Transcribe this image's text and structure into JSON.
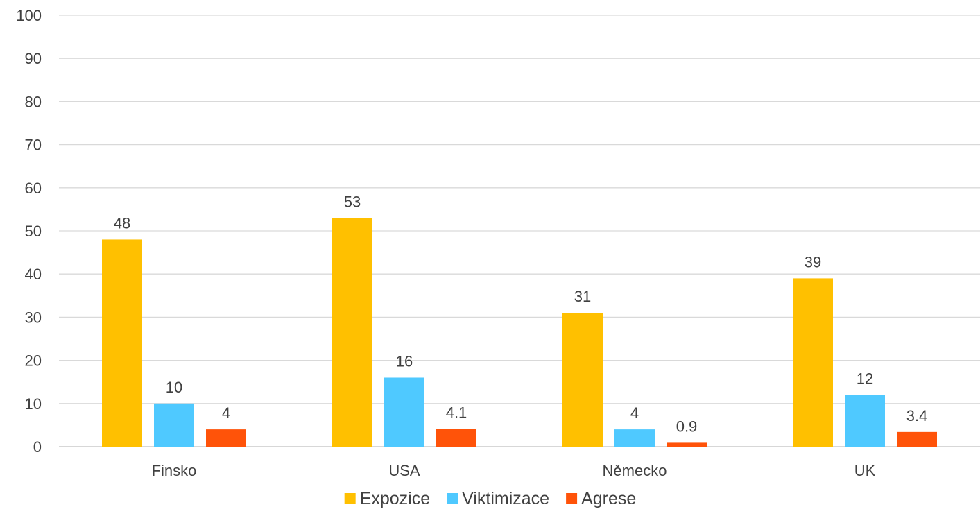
{
  "chart_data": {
    "type": "bar",
    "categories": [
      "Finsko",
      "USA",
      "Německo",
      "UK"
    ],
    "series": [
      {
        "name": "Expozice",
        "color": "#FFC000",
        "values": [
          48,
          53,
          31,
          39
        ],
        "labels": [
          "48",
          "53",
          "31",
          "39"
        ]
      },
      {
        "name": "Viktimizace",
        "color": "#4FC9FF",
        "values": [
          10,
          16,
          4,
          12
        ],
        "labels": [
          "10",
          "16",
          "4",
          "12"
        ]
      },
      {
        "name": "Agrese",
        "color": "#FF5309",
        "values": [
          4,
          4.1,
          0.9,
          3.4
        ],
        "labels": [
          "4",
          "4.1",
          "0.9",
          "3.4"
        ]
      }
    ],
    "ylim": [
      0,
      100
    ],
    "yticks": [
      "0",
      "10",
      "20",
      "30",
      "40",
      "50",
      "60",
      "70",
      "80",
      "90",
      "100"
    ],
    "grid": true,
    "legend_position": "bottom"
  }
}
